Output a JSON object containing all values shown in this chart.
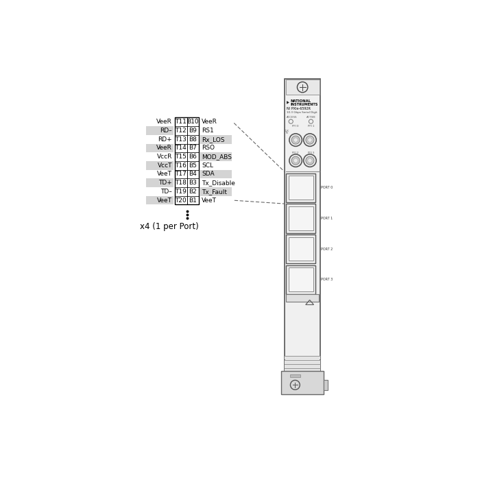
{
  "background_color": "#ffffff",
  "rows": [
    {
      "left_label": "VeeR",
      "t_pin": "T11",
      "b_pin": "B10",
      "right_label": "VeeR",
      "left_shaded": false,
      "right_shaded": false
    },
    {
      "left_label": "RD–",
      "t_pin": "T12",
      "b_pin": "B9",
      "right_label": "RS1",
      "left_shaded": true,
      "right_shaded": false
    },
    {
      "left_label": "RD+",
      "t_pin": "T13",
      "b_pin": "B8",
      "right_label": "Rx_LOS",
      "left_shaded": false,
      "right_shaded": true
    },
    {
      "left_label": "VeeR",
      "t_pin": "T14",
      "b_pin": "B7",
      "right_label": "RSO",
      "left_shaded": true,
      "right_shaded": false
    },
    {
      "left_label": "VccR",
      "t_pin": "T15",
      "b_pin": "B6",
      "right_label": "MOD_ABS",
      "left_shaded": false,
      "right_shaded": true
    },
    {
      "left_label": "VccT",
      "t_pin": "T16",
      "b_pin": "B5",
      "right_label": "SCL",
      "left_shaded": true,
      "right_shaded": false
    },
    {
      "left_label": "VeeT",
      "t_pin": "T17",
      "b_pin": "B4",
      "right_label": "SDA",
      "left_shaded": false,
      "right_shaded": true
    },
    {
      "left_label": "TD+",
      "t_pin": "T18",
      "b_pin": "B3",
      "right_label": "Tx_Disable",
      "left_shaded": true,
      "right_shaded": false
    },
    {
      "left_label": "TD–",
      "t_pin": "T19",
      "b_pin": "B2",
      "right_label": "Tx_Fault",
      "left_shaded": false,
      "right_shaded": true
    },
    {
      "left_label": "VeeT",
      "t_pin": "T20",
      "b_pin": "B1",
      "right_label": "VeeT",
      "left_shaded": true,
      "right_shaded": false
    }
  ],
  "repeat_label": "x4 (1 per Port)",
  "shaded_color": "#d4d4d4",
  "table_border_color": "#000000",
  "dashed_line_color": "#666666",
  "font_size_table": 6.5,
  "font_size_repeat": 8.5
}
